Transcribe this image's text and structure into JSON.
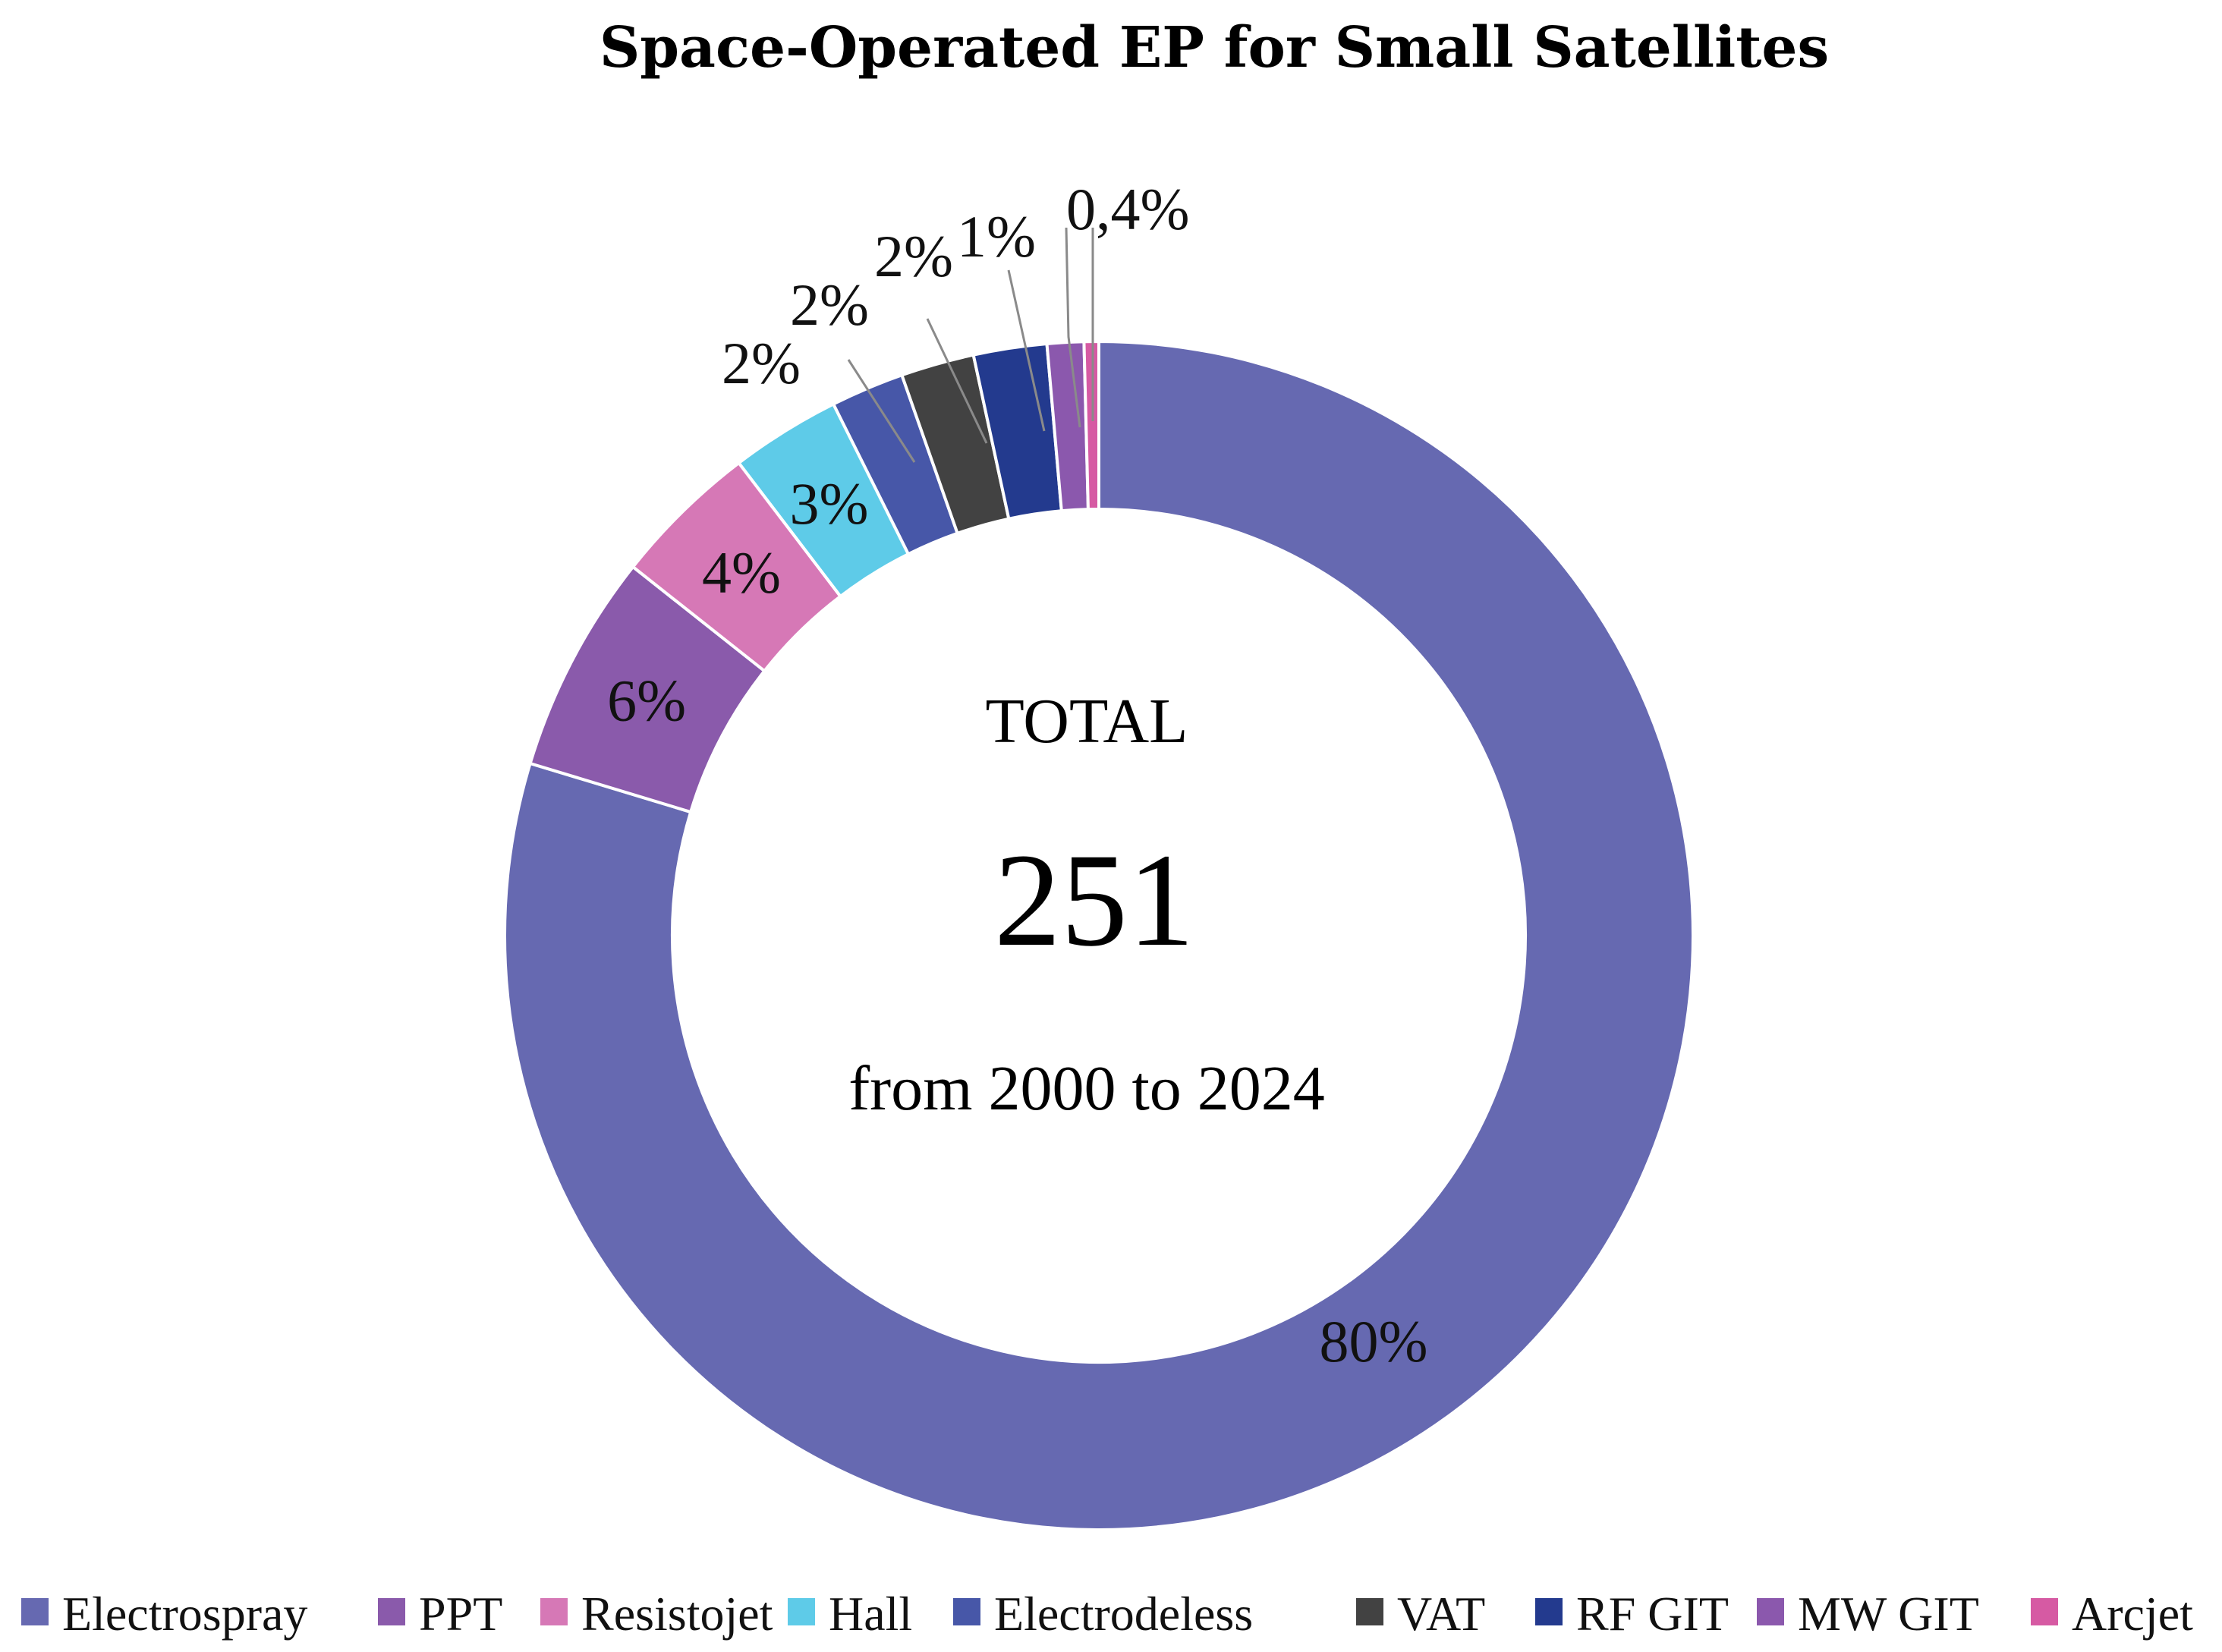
{
  "chart_data": {
    "type": "pie",
    "title": "Space-Operated EP for Small Satellites",
    "center_text": {
      "label": "TOTAL",
      "value": "251",
      "period": "from 2000 to 2024"
    },
    "legend_placement": "bottom",
    "categories": [
      "Electrospray",
      "PPT",
      "Resistojet",
      "Hall",
      "Electrodeless",
      "VAT",
      "RF GIT",
      "MW GIT",
      "Arcjet"
    ],
    "values": [
      80,
      6,
      4,
      3,
      2,
      2,
      2,
      1,
      0.4
    ],
    "labels": [
      "80%",
      "6%",
      "4%",
      "3%",
      "2%",
      "2%",
      "2%",
      "1%",
      "0,4%"
    ],
    "colors": [
      "#6669b1",
      "#8a5aab",
      "#d678b6",
      "#5ecbe8",
      "#4757a8",
      "#424242",
      "#233a8e",
      "#8b58ad",
      "#d65aa3"
    ]
  }
}
